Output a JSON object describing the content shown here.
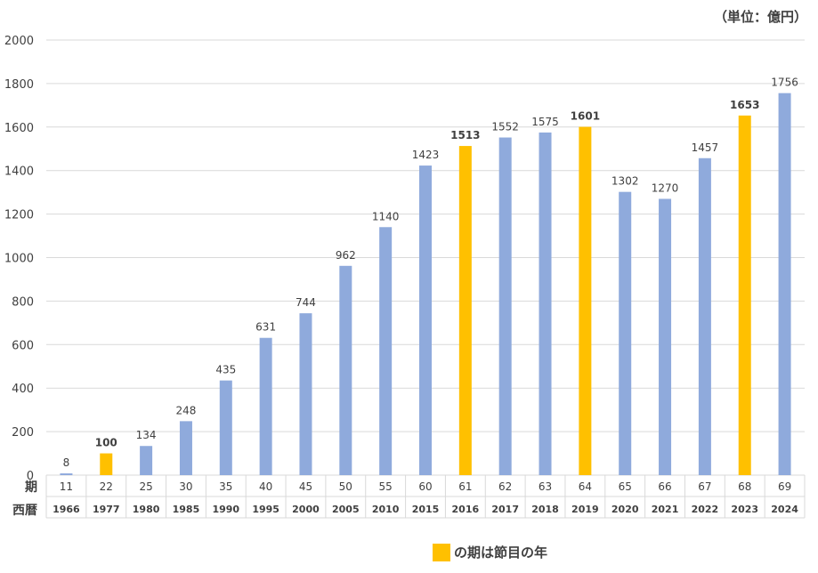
{
  "unit_label": "（単位：億円）",
  "row_labels": {
    "period": "期",
    "year": "西暦"
  },
  "legend": {
    "text": "の期は節目の年",
    "color": "#ffc000"
  },
  "colors": {
    "normal": "#8faadc",
    "milestone": "#ffc000",
    "grid": "#d9d9d9",
    "text": "#404040"
  },
  "chart_data": {
    "type": "bar",
    "title": "",
    "xlabel": "",
    "ylabel": "",
    "ylim": [
      0,
      2000
    ],
    "yticks": [
      0,
      200,
      400,
      600,
      800,
      1000,
      1200,
      1400,
      1600,
      1800,
      2000
    ],
    "grid": true,
    "periods": [
      "11",
      "22",
      "25",
      "30",
      "35",
      "40",
      "45",
      "50",
      "55",
      "60",
      "61",
      "62",
      "63",
      "64",
      "65",
      "66",
      "67",
      "68",
      "69"
    ],
    "categories": [
      "1966",
      "1977",
      "1980",
      "1985",
      "1990",
      "1995",
      "2000",
      "2005",
      "2010",
      "2015",
      "2016",
      "2017",
      "2018",
      "2019",
      "2020",
      "2021",
      "2022",
      "2023",
      "2024"
    ],
    "values": [
      8,
      100,
      134,
      248,
      435,
      631,
      744,
      962,
      1140,
      1423,
      1513,
      1552,
      1575,
      1601,
      1302,
      1270,
      1457,
      1653,
      1756
    ],
    "milestone": [
      false,
      true,
      false,
      false,
      false,
      false,
      false,
      false,
      false,
      false,
      true,
      false,
      false,
      true,
      false,
      false,
      false,
      true,
      false
    ]
  }
}
